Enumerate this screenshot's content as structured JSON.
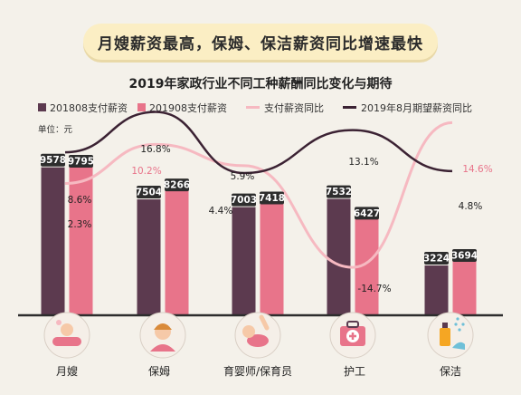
{
  "banner": {
    "text": "月嫂薪资最高，保姆、保洁薪资同比增速最快"
  },
  "chart_data": {
    "type": "bar",
    "title": "2019年家政行业不同工种薪酬同比变化与期待",
    "unit": "单位：元",
    "categories": [
      "月嫂",
      "保姆",
      "育婴师/保育员",
      "护工",
      "保洁"
    ],
    "series": [
      {
        "name": "201808支付薪资",
        "kind": "bar",
        "color": "#5c3a4f",
        "values": [
          9578,
          7504,
          7003,
          7532,
          3224
        ],
        "labels": [
          "9578",
          "7504",
          "7003",
          "7532",
          "3224"
        ]
      },
      {
        "name": "201908支付薪资",
        "kind": "bar",
        "color": "#e8748a",
        "values": [
          9795,
          8266,
          7418,
          6427,
          3694
        ],
        "labels": [
          "9795",
          "8266",
          "7418",
          "6427",
          "3694"
        ]
      },
      {
        "name": "支付薪资同比",
        "kind": "line",
        "color": "#f6b9c1",
        "values": [
          2.3,
          10.2,
          5.9,
          -14.7,
          14.6
        ],
        "labels": [
          "2.3%",
          "10.2%",
          "5.9%",
          "-14.7%",
          "14.6%"
        ]
      },
      {
        "name": "2019年8月期望薪资同比",
        "kind": "line",
        "color": "#3b2233",
        "values": [
          8.6,
          16.8,
          4.4,
          13.1,
          4.8
        ],
        "labels": [
          "8.6%",
          "16.8%",
          "4.4%",
          "13.1%",
          "4.8%"
        ]
      }
    ],
    "legend_position": "top",
    "grid": false
  },
  "icons": [
    "baby-bath-icon",
    "nanny-icon",
    "baby-crawling-icon",
    "first-aid-kit-icon",
    "cleaning-spray-icon"
  ],
  "colors": {
    "background": "#f4f1ea",
    "banner": "#fbeec4",
    "icon_circle": "#f3ede6"
  }
}
